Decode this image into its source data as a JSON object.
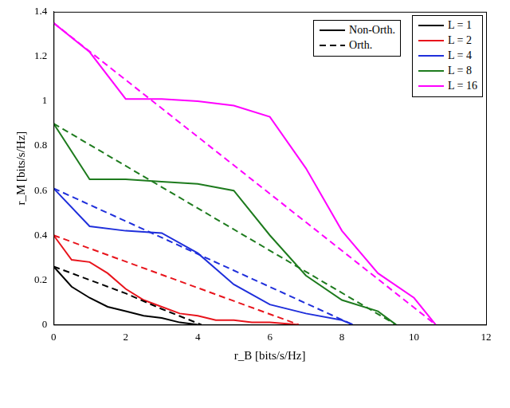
{
  "chart_data": {
    "type": "line",
    "x_label": "r_B [bits/s/Hz]",
    "y_label": "r_M [bits/s/Hz]",
    "xlim": [
      0,
      12
    ],
    "xticks": [
      0,
      2,
      4,
      6,
      8,
      10,
      12
    ],
    "ylim": [
      0,
      1.4
    ],
    "yticks": [
      0,
      0.2,
      0.4,
      0.6,
      0.8,
      1,
      1.2,
      1.4
    ],
    "grid": false,
    "line_styles": [
      {
        "name": "Non-Orth.",
        "line_style": "solid"
      },
      {
        "name": "Orth.",
        "line_style": "dashed"
      }
    ],
    "series": [
      {
        "name": "L = 1",
        "color": "#000000",
        "solid": {
          "x": [
            0,
            0.5,
            1,
            1.5,
            2,
            2.5,
            3,
            3.5,
            4
          ],
          "values": [
            0.26,
            0.17,
            0.12,
            0.08,
            0.06,
            0.04,
            0.03,
            0.01,
            0
          ]
        },
        "dashed": {
          "x": [
            0,
            1,
            2,
            3,
            4.1
          ],
          "values": [
            0.26,
            0.2,
            0.14,
            0.07,
            0
          ]
        }
      },
      {
        "name": "L = 2",
        "color": "#e8141c",
        "solid": {
          "x": [
            0,
            0.5,
            1,
            1.5,
            2,
            2.5,
            3,
            3.5,
            4,
            4.5,
            5,
            5.5,
            6,
            6.8
          ],
          "values": [
            0.4,
            0.29,
            0.28,
            0.23,
            0.16,
            0.11,
            0.08,
            0.05,
            0.04,
            0.02,
            0.02,
            0.01,
            0.01,
            0
          ]
        },
        "dashed": {
          "x": [
            0,
            6.8
          ],
          "values": [
            0.4,
            0
          ]
        }
      },
      {
        "name": "L = 4",
        "color": "#1f2fdb",
        "solid": {
          "x": [
            0,
            1,
            2,
            3,
            4,
            5,
            6,
            7,
            8,
            8.3
          ],
          "values": [
            0.61,
            0.44,
            0.42,
            0.41,
            0.32,
            0.18,
            0.09,
            0.05,
            0.02,
            0
          ]
        },
        "dashed": {
          "x": [
            0,
            8.3
          ],
          "values": [
            0.61,
            0
          ]
        }
      },
      {
        "name": "L = 8",
        "color": "#1e7b1e",
        "solid": {
          "x": [
            0,
            1,
            2,
            3,
            4,
            5,
            6,
            7,
            8,
            9,
            9.5
          ],
          "values": [
            0.9,
            0.65,
            0.65,
            0.64,
            0.63,
            0.6,
            0.4,
            0.22,
            0.11,
            0.06,
            0
          ]
        },
        "dashed": {
          "x": [
            0,
            9.5
          ],
          "values": [
            0.9,
            0
          ]
        }
      },
      {
        "name": "L = 16",
        "color": "#ff00ff",
        "solid": {
          "x": [
            0,
            1,
            2,
            3,
            4,
            5,
            6,
            7,
            8,
            9,
            10,
            10.6
          ],
          "values": [
            1.35,
            1.22,
            1.01,
            1.01,
            1.0,
            0.98,
            0.93,
            0.7,
            0.42,
            0.23,
            0.12,
            0
          ]
        },
        "dashed": {
          "x": [
            0,
            10.6
          ],
          "values": [
            1.35,
            0
          ]
        }
      }
    ]
  }
}
